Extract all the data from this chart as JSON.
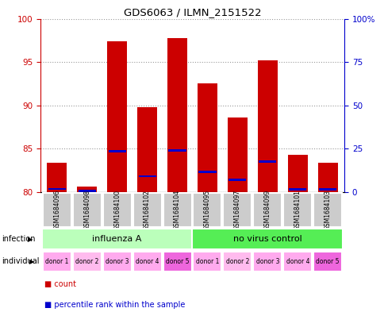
{
  "title": "GDS6063 / ILMN_2151522",
  "samples": [
    "GSM1684096",
    "GSM1684098",
    "GSM1684100",
    "GSM1684102",
    "GSM1684104",
    "GSM1684095",
    "GSM1684097",
    "GSM1684099",
    "GSM1684101",
    "GSM1684103"
  ],
  "red_values": [
    83.4,
    80.6,
    97.4,
    89.8,
    97.8,
    92.5,
    88.6,
    95.2,
    84.3,
    83.4
  ],
  "blue_values": [
    80.35,
    80.1,
    84.7,
    81.8,
    84.8,
    82.3,
    81.4,
    83.5,
    80.3,
    80.3
  ],
  "ylim_left": [
    80,
    100
  ],
  "ylim_right": [
    0,
    100
  ],
  "yticks_left": [
    80,
    85,
    90,
    95,
    100
  ],
  "yticks_right": [
    0,
    25,
    50,
    75,
    100
  ],
  "ytick_labels_right": [
    "0",
    "25",
    "50",
    "75",
    "100%"
  ],
  "infection_groups": [
    {
      "label": "influenza A",
      "start": 0,
      "end": 5,
      "color": "#bbffbb"
    },
    {
      "label": "no virus control",
      "start": 5,
      "end": 10,
      "color": "#55ee55"
    }
  ],
  "individual_colors": [
    "#ffaaee",
    "#ffbbee",
    "#ffaaee",
    "#ffaaee",
    "#ee66dd",
    "#ffaaee",
    "#ffbbee",
    "#ffaaee",
    "#ffaaee",
    "#ee66dd"
  ],
  "individual_labels": [
    "donor 1",
    "donor 2",
    "donor 3",
    "donor 4",
    "donor 5",
    "donor 1",
    "donor 2",
    "donor 3",
    "donor 4",
    "donor 5"
  ],
  "bar_bg_color": "#cccccc",
  "legend_count_color": "#cc0000",
  "legend_pct_color": "#0000cc",
  "left_axis_color": "#cc0000",
  "right_axis_color": "#0000cc",
  "bg_color": "#ffffff"
}
